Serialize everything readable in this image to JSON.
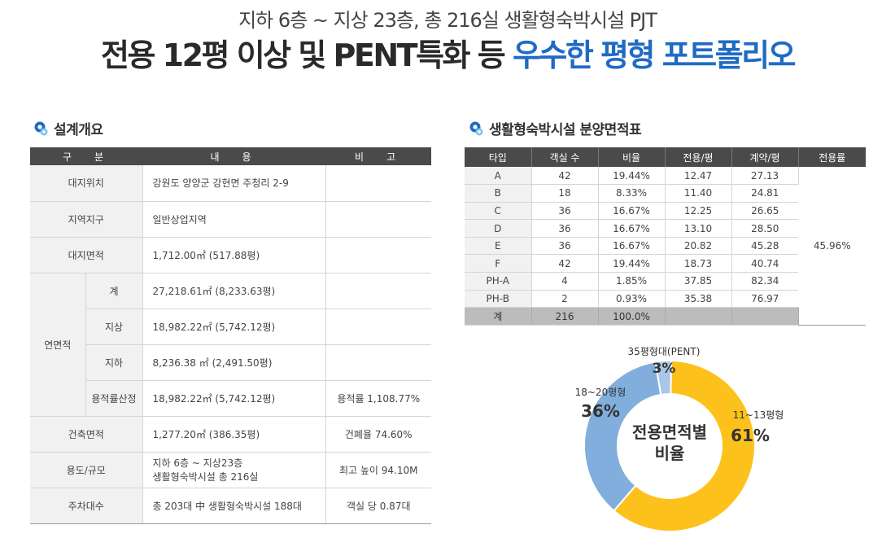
{
  "header": {
    "subtitle": "지하 6층 ~ 지상 23층, 총 216실 생활형숙박시설 PJT",
    "title_main": "전용 12평 이상 및 PENT특화 등 ",
    "title_highlight": "우수한 평형 포트폴리오",
    "highlight_color": "#1f6bc4"
  },
  "design": {
    "title": "설계개요",
    "headers": [
      "구　분",
      "내　용",
      "비　고"
    ],
    "rows": {
      "site_location": {
        "label": "대지위치",
        "value": "강원도 양양군 강현면 주청리 2-9",
        "note": ""
      },
      "zone": {
        "label": "지역지구",
        "value": "일반상업지역",
        "note": ""
      },
      "site_area": {
        "label": "대지면적",
        "value": "1,712.00㎡ (517.88평)",
        "note": ""
      },
      "gfa_label": "연면적",
      "gfa_total": {
        "label": "계",
        "value": "27,218.61㎡ (8,233.63평)",
        "note": ""
      },
      "gfa_above": {
        "label": "지상",
        "value": "18,982.22㎡ (5,742.12평)",
        "note": ""
      },
      "gfa_below": {
        "label": "지하",
        "value": "8,236.38 ㎡ (2,491.50평)",
        "note": ""
      },
      "gfa_far": {
        "label": "용적률산정",
        "value": "18,982.22㎡ (5,742.12평)",
        "note": "용적률 1,108.77%"
      },
      "building_area": {
        "label": "건축면적",
        "value": "1,277.20㎡ (386.35평)",
        "note": "건폐율 74.60%"
      },
      "use_scale": {
        "label": "용도/규모",
        "value_line1": "지하 6층 ~ 지상23층",
        "value_line2": "생활형숙박시설 총 216실",
        "note": "최고 높이 94.10M"
      },
      "parking": {
        "label": "주차대수",
        "value": "총 203대 中 생활형숙박시설 188대",
        "note": "객실 당 0.87대"
      }
    }
  },
  "area": {
    "title": "생활형숙박시설 분양면적표",
    "headers": [
      "타입",
      "객실 수",
      "비율",
      "전용/평",
      "계약/평",
      "전용률"
    ],
    "rows": [
      {
        "type": "A",
        "rooms": "42",
        "ratio": "19.44%",
        "exclusive": "12.47",
        "contract": "27.13"
      },
      {
        "type": "B",
        "rooms": "18",
        "ratio": "8.33%",
        "exclusive": "11.40",
        "contract": "24.81"
      },
      {
        "type": "C",
        "rooms": "36",
        "ratio": "16.67%",
        "exclusive": "12.25",
        "contract": "26.65"
      },
      {
        "type": "D",
        "rooms": "36",
        "ratio": "16.67%",
        "exclusive": "13.10",
        "contract": "28.50"
      },
      {
        "type": "E",
        "rooms": "36",
        "ratio": "16.67%",
        "exclusive": "20.82",
        "contract": "45.28"
      },
      {
        "type": "F",
        "rooms": "42",
        "ratio": "19.44%",
        "exclusive": "18.73",
        "contract": "40.74"
      },
      {
        "type": "PH-A",
        "rooms": "4",
        "ratio": "1.85%",
        "exclusive": "37.85",
        "contract": "82.34"
      },
      {
        "type": "PH-B",
        "rooms": "2",
        "ratio": "0.93%",
        "exclusive": "35.38",
        "contract": "76.97"
      }
    ],
    "total": {
      "type": "계",
      "rooms": "216",
      "ratio": "100.0%",
      "exclusive": "",
      "contract": ""
    },
    "efficiency": "45.96%"
  },
  "chart_data": {
    "type": "pie",
    "title": "전용면적별\n비율",
    "slices": [
      {
        "label": "11~13평형",
        "value": 61,
        "value_label": "61%",
        "color": "#fcc21b"
      },
      {
        "label": "18~20평형",
        "value": 36,
        "value_label": "36%",
        "color": "#82aedd"
      },
      {
        "label": "35평형대(PENT)",
        "value": 3,
        "value_label": "3%",
        "color": "#aac6e8"
      }
    ]
  }
}
